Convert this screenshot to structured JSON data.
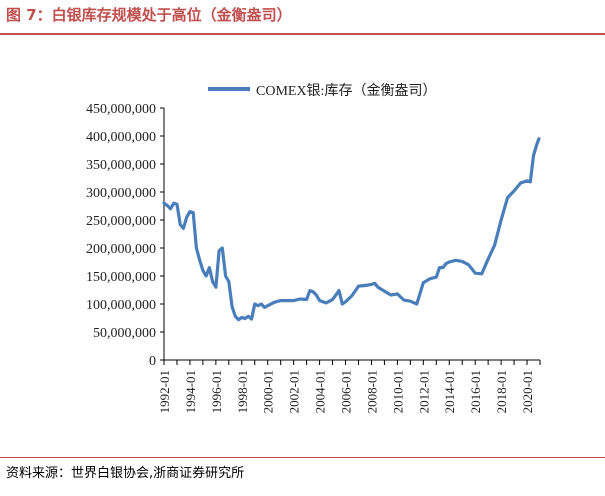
{
  "figure_title": "图 7：白银库存规模处于高位（金衡盎司）",
  "source_note": "资料来源：世界白银协会,浙商证券研究所",
  "colors": {
    "series": "#4a7ebb",
    "accent": "#c0504d",
    "axis": "#000000"
  },
  "chart_data": {
    "type": "line",
    "series": [
      {
        "name": "COMEX银:库存（金衡盎司）",
        "points": [
          [
            "1992-01",
            280000000
          ],
          [
            "1992-04",
            276000000
          ],
          [
            "1992-07",
            270000000
          ],
          [
            "1992-10",
            280000000
          ],
          [
            "1993-01",
            278000000
          ],
          [
            "1993-04",
            242000000
          ],
          [
            "1993-07",
            235000000
          ],
          [
            "1993-10",
            255000000
          ],
          [
            "1994-01",
            265000000
          ],
          [
            "1994-04",
            263000000
          ],
          [
            "1994-07",
            200000000
          ],
          [
            "1994-10",
            178000000
          ],
          [
            "1995-01",
            160000000
          ],
          [
            "1995-04",
            150000000
          ],
          [
            "1995-07",
            165000000
          ],
          [
            "1995-10",
            140000000
          ],
          [
            "1996-01",
            130000000
          ],
          [
            "1996-04",
            195000000
          ],
          [
            "1996-07",
            200000000
          ],
          [
            "1996-10",
            150000000
          ],
          [
            "1997-01",
            140000000
          ],
          [
            "1997-04",
            95000000
          ],
          [
            "1997-07",
            78000000
          ],
          [
            "1997-10",
            72000000
          ],
          [
            "1998-01",
            76000000
          ],
          [
            "1998-04",
            74000000
          ],
          [
            "1998-07",
            78000000
          ],
          [
            "1998-10",
            73000000
          ],
          [
            "1999-01",
            100000000
          ],
          [
            "1999-04",
            97000000
          ],
          [
            "1999-07",
            100000000
          ],
          [
            "1999-10",
            94000000
          ],
          [
            "2000-01",
            97000000
          ],
          [
            "2000-07",
            103000000
          ],
          [
            "2001-01",
            106000000
          ],
          [
            "2001-07",
            106000000
          ],
          [
            "2002-01",
            106000000
          ],
          [
            "2002-07",
            109000000
          ],
          [
            "2003-01",
            108000000
          ],
          [
            "2003-04",
            124000000
          ],
          [
            "2003-07",
            122000000
          ],
          [
            "2003-10",
            116000000
          ],
          [
            "2004-01",
            106000000
          ],
          [
            "2004-07",
            102000000
          ],
          [
            "2005-01",
            108000000
          ],
          [
            "2005-07",
            124000000
          ],
          [
            "2005-10",
            100000000
          ],
          [
            "2006-01",
            104000000
          ],
          [
            "2006-07",
            115000000
          ],
          [
            "2007-01",
            132000000
          ],
          [
            "2007-07",
            133000000
          ],
          [
            "2008-01",
            135000000
          ],
          [
            "2008-04",
            137000000
          ],
          [
            "2008-07",
            130000000
          ],
          [
            "2009-01",
            123000000
          ],
          [
            "2009-07",
            116000000
          ],
          [
            "2010-01",
            118000000
          ],
          [
            "2010-07",
            107000000
          ],
          [
            "2011-01",
            105000000
          ],
          [
            "2011-07",
            100000000
          ],
          [
            "2012-01",
            138000000
          ],
          [
            "2012-07",
            145000000
          ],
          [
            "2013-01",
            148000000
          ],
          [
            "2013-04",
            165000000
          ],
          [
            "2013-07",
            165000000
          ],
          [
            "2013-10",
            172000000
          ],
          [
            "2014-01",
            175000000
          ],
          [
            "2014-07",
            178000000
          ],
          [
            "2015-01",
            176000000
          ],
          [
            "2015-07",
            170000000
          ],
          [
            "2016-01",
            155000000
          ],
          [
            "2016-07",
            154000000
          ],
          [
            "2017-01",
            180000000
          ],
          [
            "2017-07",
            205000000
          ],
          [
            "2018-01",
            250000000
          ],
          [
            "2018-07",
            290000000
          ],
          [
            "2019-01",
            302000000
          ],
          [
            "2019-07",
            316000000
          ],
          [
            "2020-01",
            320000000
          ],
          [
            "2020-04",
            318000000
          ],
          [
            "2020-07",
            365000000
          ],
          [
            "2020-10",
            385000000
          ],
          [
            "2020-12",
            395000000
          ]
        ]
      }
    ],
    "y_ticks": [
      "0",
      "50,000,000",
      "100,000,000",
      "150,000,000",
      "200,000,000",
      "250,000,000",
      "300,000,000",
      "350,000,000",
      "400,000,000",
      "450,000,000"
    ],
    "x_ticks": [
      "1992-01",
      "1994-01",
      "1996-01",
      "1998-01",
      "2000-01",
      "2002-01",
      "2004-01",
      "2006-01",
      "2008-01",
      "2010-01",
      "2012-01",
      "2014-01",
      "2016-01",
      "2018-01",
      "2020-01"
    ],
    "ylim": [
      0,
      450000000
    ],
    "xlim": [
      "1992-01",
      "2021-01"
    ],
    "legend_position": "top",
    "grid": false
  }
}
